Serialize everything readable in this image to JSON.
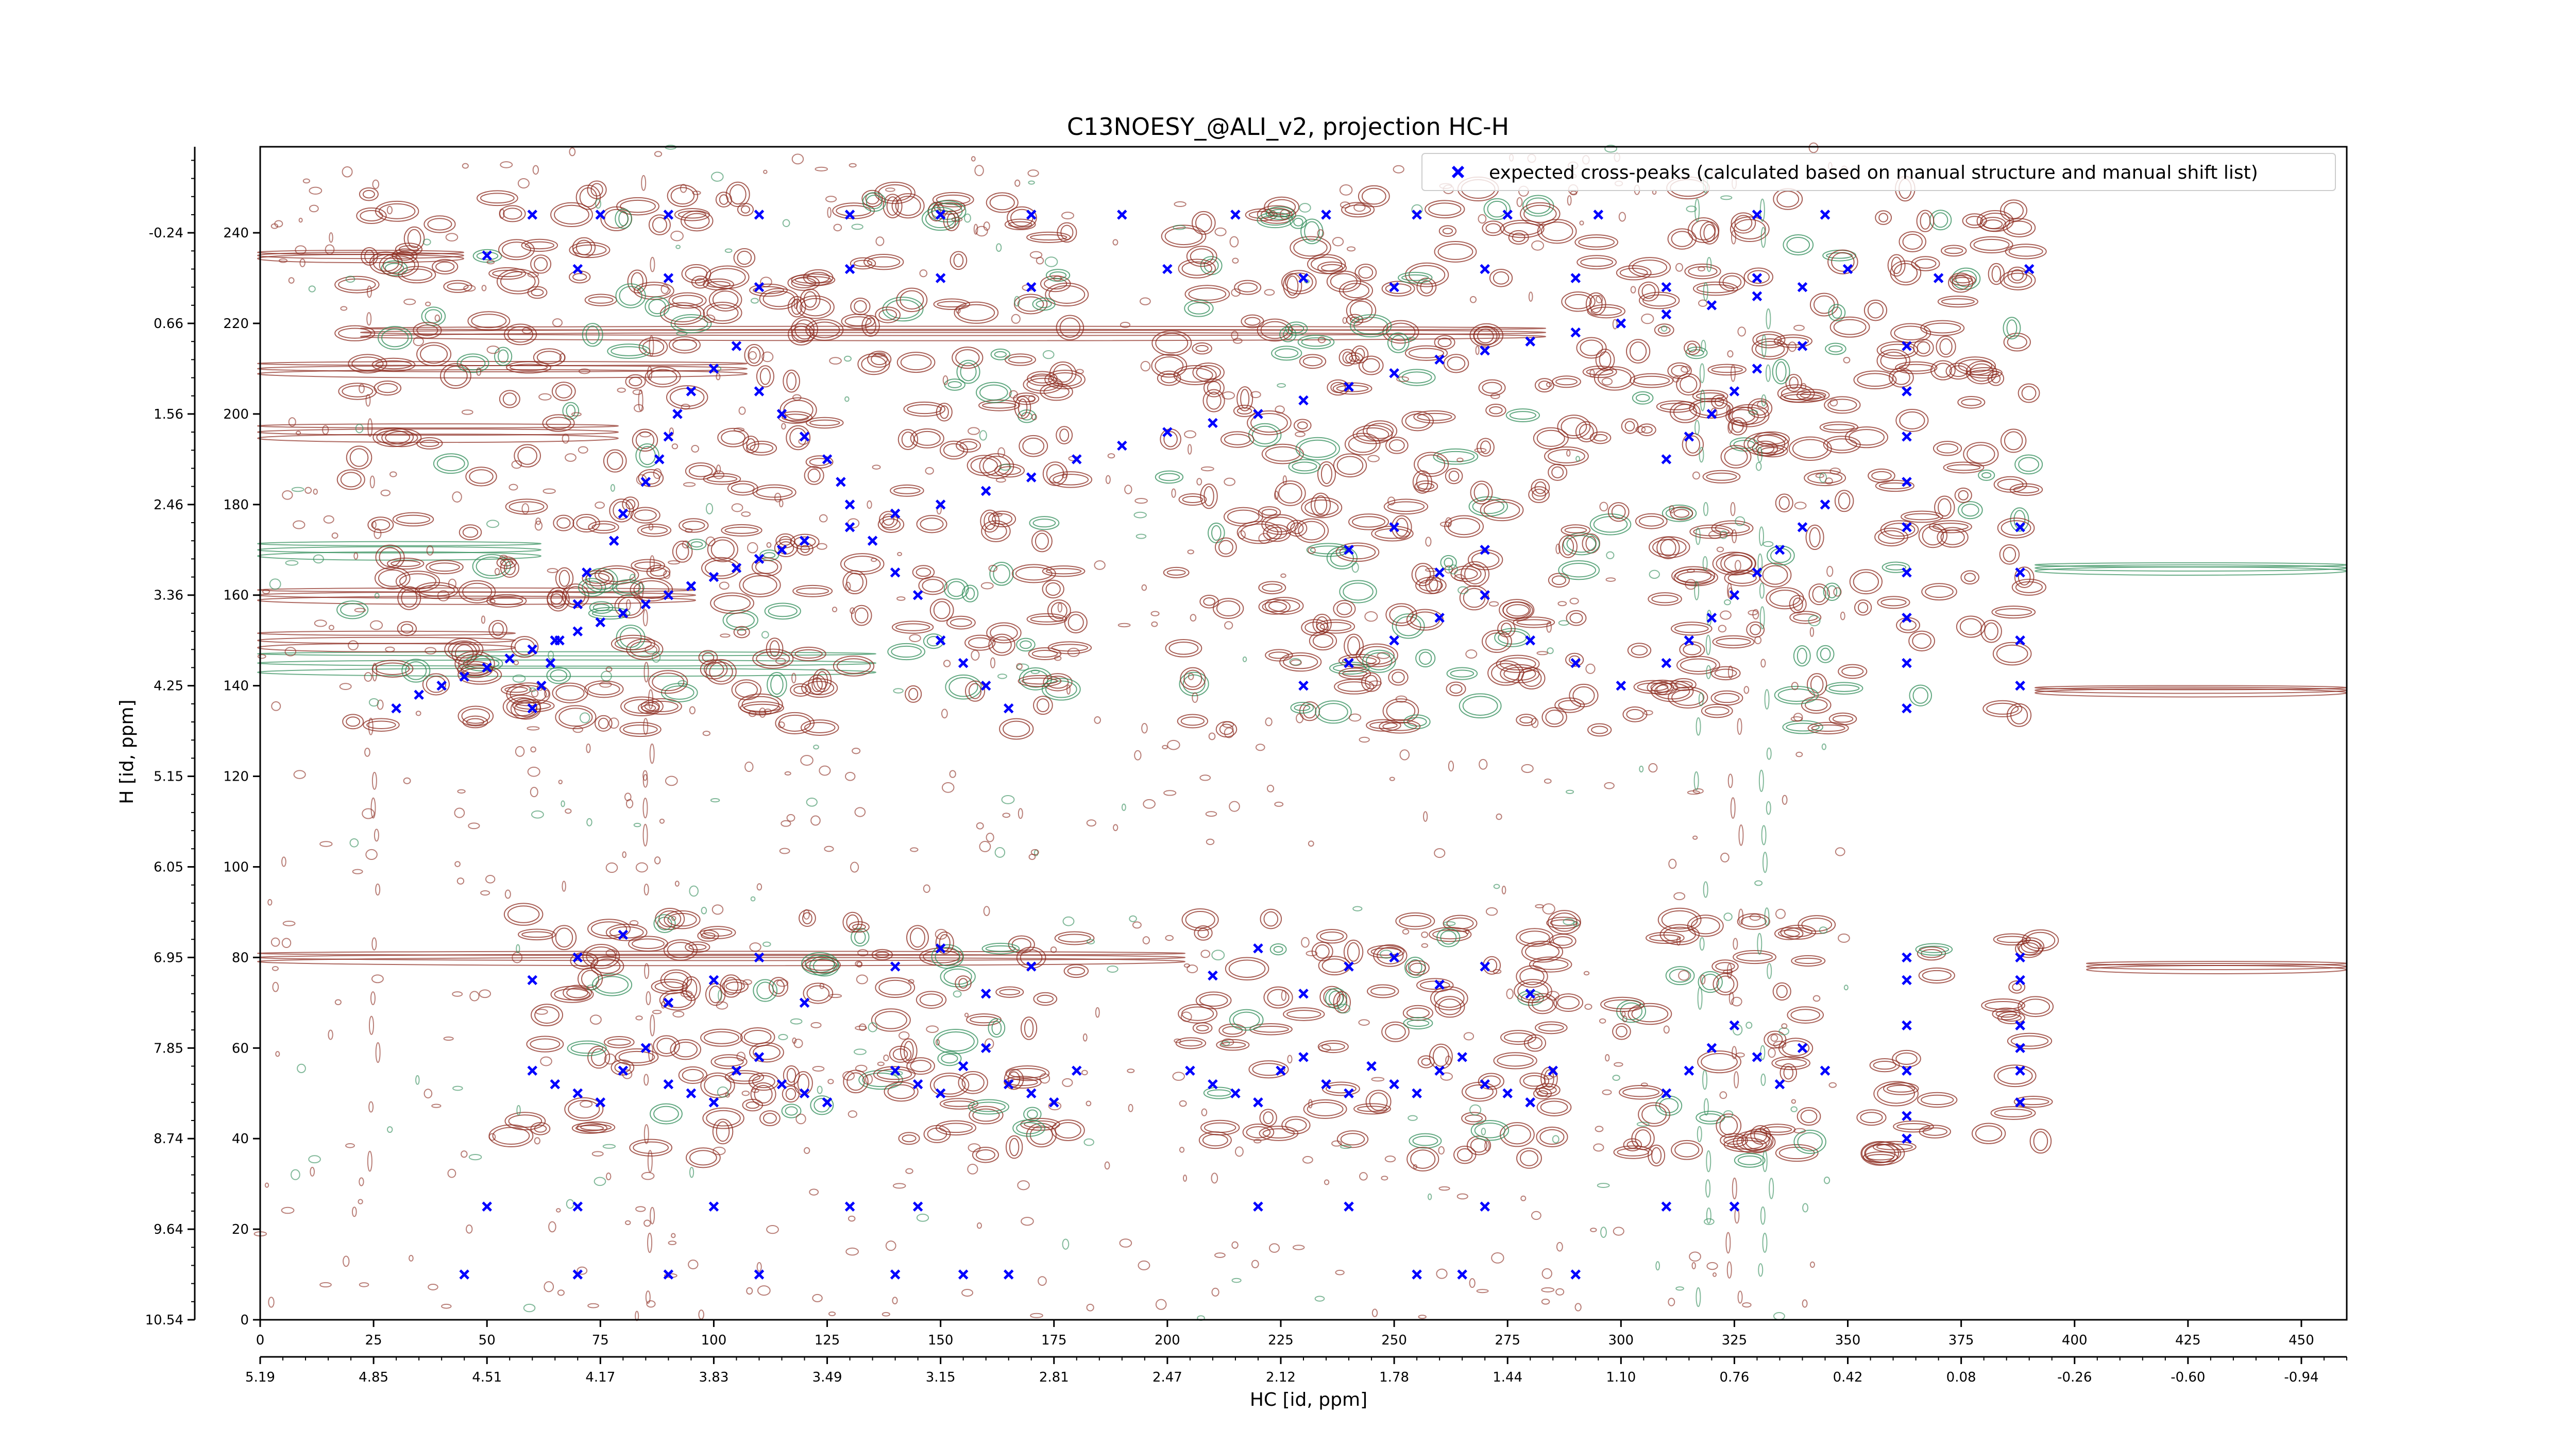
{
  "chart_data": {
    "type": "scatter",
    "title": "C13NOESY_@ALI_v2, projection HC-H",
    "xlabel": "HC [id, ppm]",
    "ylabel": "H [id, ppm]",
    "xlim": [
      0,
      460
    ],
    "ylim": [
      0,
      259
    ],
    "x_ticks": [
      0,
      25,
      50,
      75,
      100,
      125,
      150,
      175,
      200,
      225,
      250,
      275,
      300,
      325,
      350,
      375,
      400,
      425,
      450
    ],
    "x_ticks_ppm": {
      "positions": [
        0,
        25,
        50,
        75,
        100,
        125,
        150,
        175,
        200,
        225,
        250,
        275,
        300,
        325,
        350,
        375,
        400,
        425,
        450
      ],
      "labels": [
        "5.19",
        "4.85",
        "4.51",
        "4.17",
        "3.83",
        "3.49",
        "3.15",
        "2.81",
        "2.47",
        "2.12",
        "1.78",
        "1.44",
        "1.10",
        "0.76",
        "0.42",
        "0.08",
        "-0.26",
        "-0.60",
        "-0.94"
      ]
    },
    "y_ticks": [
      0,
      20,
      40,
      60,
      80,
      100,
      120,
      140,
      160,
      180,
      200,
      220,
      240
    ],
    "y_ticks_ppm": {
      "positions": [
        0,
        20,
        40,
        60,
        80,
        100,
        120,
        140,
        160,
        180,
        200,
        220,
        240
      ],
      "labels": [
        "10.54",
        "9.64",
        "8.74",
        "7.85",
        "6.95",
        "6.05",
        "5.15",
        "4.25",
        "3.36",
        "2.46",
        "1.56",
        "0.66",
        "-0.24"
      ]
    },
    "legend": {
      "placement": "top-right",
      "entries": [
        {
          "label": "expected cross-peaks (calculated based on manual structure and manual shift list)",
          "marker": "x",
          "color": "#0000ff"
        }
      ]
    },
    "series": [
      {
        "name": "expected cross-peaks (calculated based on manual structure and manual shift list)",
        "color": "#0000ff",
        "marker": "x",
        "points": [
          [
            30,
            135
          ],
          [
            35,
            138
          ],
          [
            40,
            140
          ],
          [
            45,
            142
          ],
          [
            50,
            144
          ],
          [
            55,
            146
          ],
          [
            60,
            148
          ],
          [
            65,
            150
          ],
          [
            70,
            152
          ],
          [
            75,
            154
          ],
          [
            80,
            156
          ],
          [
            85,
            158
          ],
          [
            90,
            160
          ],
          [
            95,
            162
          ],
          [
            100,
            164
          ],
          [
            105,
            166
          ],
          [
            110,
            168
          ],
          [
            115,
            170
          ],
          [
            120,
            172
          ],
          [
            130,
            175
          ],
          [
            140,
            178
          ],
          [
            150,
            180
          ],
          [
            160,
            183
          ],
          [
            170,
            186
          ],
          [
            180,
            190
          ],
          [
            190,
            193
          ],
          [
            200,
            196
          ],
          [
            210,
            198
          ],
          [
            220,
            200
          ],
          [
            230,
            203
          ],
          [
            240,
            206
          ],
          [
            250,
            209
          ],
          [
            260,
            212
          ],
          [
            270,
            214
          ],
          [
            280,
            216
          ],
          [
            290,
            218
          ],
          [
            300,
            220
          ],
          [
            310,
            222
          ],
          [
            320,
            224
          ],
          [
            330,
            226
          ],
          [
            340,
            228
          ],
          [
            60,
            135
          ],
          [
            62,
            140
          ],
          [
            64,
            145
          ],
          [
            66,
            150
          ],
          [
            70,
            158
          ],
          [
            72,
            165
          ],
          [
            78,
            172
          ],
          [
            80,
            178
          ],
          [
            85,
            185
          ],
          [
            88,
            190
          ],
          [
            90,
            195
          ],
          [
            92,
            200
          ],
          [
            95,
            205
          ],
          [
            100,
            210
          ],
          [
            105,
            215
          ],
          [
            110,
            205
          ],
          [
            115,
            200
          ],
          [
            120,
            195
          ],
          [
            125,
            190
          ],
          [
            128,
            185
          ],
          [
            130,
            180
          ],
          [
            135,
            172
          ],
          [
            140,
            165
          ],
          [
            145,
            160
          ],
          [
            150,
            150
          ],
          [
            155,
            145
          ],
          [
            160,
            140
          ],
          [
            165,
            135
          ],
          [
            60,
            55
          ],
          [
            65,
            52
          ],
          [
            70,
            50
          ],
          [
            75,
            48
          ],
          [
            80,
            55
          ],
          [
            85,
            60
          ],
          [
            90,
            52
          ],
          [
            95,
            50
          ],
          [
            100,
            48
          ],
          [
            105,
            55
          ],
          [
            110,
            58
          ],
          [
            115,
            52
          ],
          [
            120,
            50
          ],
          [
            125,
            48
          ],
          [
            140,
            55
          ],
          [
            145,
            52
          ],
          [
            150,
            50
          ],
          [
            155,
            56
          ],
          [
            160,
            60
          ],
          [
            165,
            52
          ],
          [
            170,
            50
          ],
          [
            175,
            48
          ],
          [
            180,
            55
          ],
          [
            205,
            55
          ],
          [
            210,
            52
          ],
          [
            215,
            50
          ],
          [
            220,
            48
          ],
          [
            225,
            55
          ],
          [
            230,
            58
          ],
          [
            235,
            52
          ],
          [
            240,
            50
          ],
          [
            245,
            56
          ],
          [
            250,
            52
          ],
          [
            255,
            50
          ],
          [
            260,
            55
          ],
          [
            265,
            58
          ],
          [
            270,
            52
          ],
          [
            275,
            50
          ],
          [
            280,
            48
          ],
          [
            285,
            55
          ],
          [
            60,
            75
          ],
          [
            70,
            80
          ],
          [
            80,
            85
          ],
          [
            90,
            70
          ],
          [
            100,
            75
          ],
          [
            110,
            80
          ],
          [
            120,
            70
          ],
          [
            140,
            78
          ],
          [
            150,
            82
          ],
          [
            160,
            72
          ],
          [
            170,
            78
          ],
          [
            210,
            76
          ],
          [
            220,
            82
          ],
          [
            230,
            72
          ],
          [
            240,
            78
          ],
          [
            250,
            80
          ],
          [
            260,
            74
          ],
          [
            270,
            78
          ],
          [
            280,
            72
          ],
          [
            310,
            50
          ],
          [
            315,
            55
          ],
          [
            320,
            60
          ],
          [
            325,
            65
          ],
          [
            330,
            58
          ],
          [
            335,
            52
          ],
          [
            340,
            60
          ],
          [
            345,
            55
          ],
          [
            363,
            40
          ],
          [
            363,
            45
          ],
          [
            363,
            55
          ],
          [
            363,
            65
          ],
          [
            363,
            75
          ],
          [
            363,
            80
          ],
          [
            363,
            135
          ],
          [
            363,
            145
          ],
          [
            363,
            155
          ],
          [
            363,
            165
          ],
          [
            363,
            175
          ],
          [
            363,
            185
          ],
          [
            363,
            195
          ],
          [
            363,
            205
          ],
          [
            363,
            215
          ],
          [
            388,
            48
          ],
          [
            388,
            55
          ],
          [
            388,
            60
          ],
          [
            388,
            65
          ],
          [
            388,
            75
          ],
          [
            388,
            80
          ],
          [
            388,
            140
          ],
          [
            388,
            150
          ],
          [
            388,
            165
          ],
          [
            388,
            175
          ],
          [
            310,
            145
          ],
          [
            315,
            150
          ],
          [
            320,
            155
          ],
          [
            325,
            160
          ],
          [
            330,
            165
          ],
          [
            335,
            170
          ],
          [
            340,
            175
          ],
          [
            345,
            180
          ],
          [
            310,
            190
          ],
          [
            315,
            195
          ],
          [
            320,
            200
          ],
          [
            325,
            205
          ],
          [
            330,
            210
          ],
          [
            340,
            215
          ],
          [
            230,
            140
          ],
          [
            240,
            145
          ],
          [
            250,
            150
          ],
          [
            260,
            155
          ],
          [
            270,
            160
          ],
          [
            280,
            150
          ],
          [
            290,
            145
          ],
          [
            300,
            140
          ],
          [
            240,
            170
          ],
          [
            250,
            175
          ],
          [
            260,
            165
          ],
          [
            270,
            170
          ],
          [
            45,
            10
          ],
          [
            70,
            10
          ],
          [
            90,
            10
          ],
          [
            110,
            10
          ],
          [
            140,
            10
          ],
          [
            155,
            10
          ],
          [
            165,
            10
          ],
          [
            255,
            10
          ],
          [
            265,
            10
          ],
          [
            290,
            10
          ],
          [
            50,
            25
          ],
          [
            70,
            25
          ],
          [
            100,
            25
          ],
          [
            130,
            25
          ],
          [
            145,
            25
          ],
          [
            220,
            25
          ],
          [
            240,
            25
          ],
          [
            270,
            25
          ],
          [
            310,
            25
          ],
          [
            325,
            25
          ],
          [
            60,
            244
          ],
          [
            75,
            244
          ],
          [
            90,
            244
          ],
          [
            110,
            244
          ],
          [
            130,
            244
          ],
          [
            150,
            244
          ],
          [
            170,
            244
          ],
          [
            190,
            244
          ],
          [
            215,
            244
          ],
          [
            235,
            244
          ],
          [
            255,
            244
          ],
          [
            275,
            244
          ],
          [
            295,
            244
          ],
          [
            330,
            244
          ],
          [
            345,
            244
          ],
          [
            50,
            235
          ],
          [
            70,
            232
          ],
          [
            90,
            230
          ],
          [
            110,
            228
          ],
          [
            130,
            232
          ],
          [
            150,
            230
          ],
          [
            170,
            228
          ],
          [
            200,
            232
          ],
          [
            230,
            230
          ],
          [
            250,
            228
          ],
          [
            270,
            232
          ],
          [
            290,
            230
          ],
          [
            310,
            228
          ],
          [
            330,
            230
          ],
          [
            350,
            232
          ],
          [
            370,
            230
          ],
          [
            390,
            232
          ]
        ]
      }
    ],
    "contours": {
      "positive_color": "#8b2a1e",
      "negative_color": "#2e8b57",
      "description_bands": [
        {
          "y_range": [
            35,
            90
          ],
          "x_ranges": [
            [
              55,
              125
            ],
            [
              130,
              180
            ],
            [
              205,
              290
            ],
            [
              300,
              345
            ],
            [
              355,
              370
            ],
            [
              380,
              395
            ]
          ]
        },
        {
          "y_range": [
            130,
            250
          ],
          "x_ranges": [
            [
              20,
              125
            ],
            [
              130,
              180
            ],
            [
              200,
              330
            ],
            [
              330,
              390
            ]
          ]
        }
      ]
    }
  }
}
